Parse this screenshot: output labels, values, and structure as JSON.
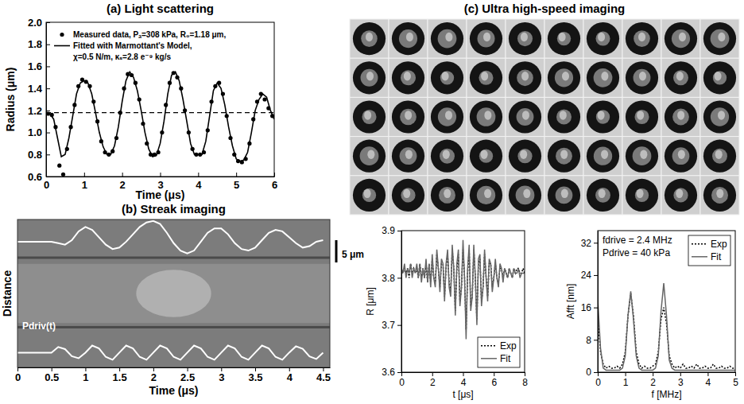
{
  "chart_data": [
    {
      "type": "line",
      "title": "(a) Light scattering",
      "x_label": "Time (μs)",
      "y_label": "Radius (μm)",
      "xlim": [
        0,
        6
      ],
      "xticks": [
        0,
        1,
        2,
        3,
        4,
        5,
        6
      ],
      "ylim": [
        0.6,
        2.0
      ],
      "yticks": [
        0.6,
        0.8,
        {
          "value": 1.0,
          "label": "1.0"
        },
        1.2,
        1.4,
        1.6,
        1.8,
        {
          "value": 2.0,
          "label": "2.0"
        }
      ],
      "legend": "upper left",
      "hlines": [
        {
          "value": 1.18,
          "line_style": "dashed",
          "color": "#000000"
        }
      ],
      "annotations": [
        {
          "text": "χ=0.5 N/m, κₛ=2.8 e⁻⁹ kg/s"
        }
      ],
      "series": [
        {
          "name": "Measured data, Pₐ=308 kPa, R₀=1.18 μm,",
          "type": "scatter",
          "marker": "circle",
          "color": "#000000",
          "x": [
            0.05,
            0.15,
            0.25,
            0.35,
            0.45,
            0.55,
            0.65,
            0.75,
            0.85,
            0.95,
            1.05,
            1.15,
            1.25,
            1.35,
            1.45,
            1.55,
            1.65,
            1.75,
            1.85,
            1.95,
            2.05,
            2.15,
            2.25,
            2.35,
            2.45,
            2.55,
            2.65,
            2.75,
            2.85,
            2.95,
            3.05,
            3.15,
            3.25,
            3.35,
            3.45,
            3.55,
            3.65,
            3.75,
            3.85,
            3.95,
            4.05,
            4.15,
            4.25,
            4.35,
            4.45,
            4.55,
            4.65,
            4.75,
            4.85,
            4.95,
            5.05,
            5.15,
            5.25,
            5.35,
            5.45,
            5.55,
            5.65,
            5.75,
            5.85,
            5.95
          ],
          "values": [
            1.17,
            1.16,
            1.05,
            0.7,
            0.62,
            0.85,
            1.05,
            1.25,
            1.42,
            1.48,
            1.46,
            1.42,
            1.28,
            1.1,
            0.92,
            0.82,
            0.8,
            0.83,
            0.95,
            1.18,
            1.4,
            1.53,
            1.52,
            1.45,
            1.3,
            1.08,
            0.9,
            0.8,
            0.8,
            0.82,
            1.0,
            1.25,
            1.45,
            1.54,
            1.5,
            1.4,
            1.2,
            1.0,
            0.85,
            0.8,
            0.8,
            0.82,
            1.02,
            1.28,
            1.42,
            1.45,
            1.35,
            1.15,
            0.95,
            0.8,
            0.74,
            0.73,
            0.76,
            0.9,
            1.12,
            1.28,
            1.35,
            1.3,
            1.22,
            1.15
          ]
        },
        {
          "name": "Fitted with Marmottant's Model,",
          "type": "line",
          "line_style": "solid",
          "color": "#000000",
          "x": [
            0,
            0.1,
            0.2,
            0.3,
            0.4,
            0.5,
            0.6,
            0.7,
            0.8,
            0.9,
            1,
            1.1,
            1.2,
            1.3,
            1.4,
            1.5,
            1.6,
            1.7,
            1.8,
            1.9,
            2,
            2.1,
            2.2,
            2.3,
            2.4,
            2.5,
            2.6,
            2.7,
            2.8,
            2.9,
            3,
            3.1,
            3.2,
            3.3,
            3.4,
            3.5,
            3.6,
            3.7,
            3.8,
            3.9,
            4,
            4.1,
            4.2,
            4.3,
            4.4,
            4.5,
            4.6,
            4.7,
            4.8,
            4.9,
            5,
            5.1,
            5.2,
            5.3,
            5.4,
            5.5,
            5.6,
            5.7,
            5.8,
            5.9,
            6
          ],
          "values": [
            1.18,
            1.17,
            1.12,
            0.95,
            0.78,
            0.8,
            0.95,
            1.15,
            1.35,
            1.45,
            1.47,
            1.45,
            1.35,
            1.18,
            1.0,
            0.87,
            0.8,
            0.8,
            0.88,
            1.05,
            1.28,
            1.47,
            1.55,
            1.5,
            1.38,
            1.2,
            1.0,
            0.85,
            0.78,
            0.79,
            0.9,
            1.1,
            1.35,
            1.52,
            1.55,
            1.47,
            1.3,
            1.1,
            0.9,
            0.8,
            0.8,
            0.8,
            0.92,
            1.15,
            1.38,
            1.45,
            1.4,
            1.25,
            1.05,
            0.88,
            0.76,
            0.74,
            0.75,
            0.82,
            1.0,
            1.2,
            1.3,
            1.35,
            1.32,
            1.2,
            1.12
          ]
        }
      ]
    },
    {
      "type": "line",
      "title": "(b) Streak imaging",
      "x_label": "Time (μs)",
      "y_label": "Distance",
      "xlim": [
        0,
        4.6
      ],
      "xticks": [
        0,
        0.5,
        1,
        1.5,
        2,
        2.5,
        3,
        3.5,
        4,
        4.5
      ],
      "ylim": [
        0,
        10
      ],
      "tick_labels": "x",
      "annotations": [
        {
          "text": "5 μm"
        }
      ],
      "x": [
        0,
        0.1,
        0.2,
        0.3,
        0.4,
        0.5,
        0.6,
        0.7,
        0.8,
        0.9,
        1,
        1.1,
        1.2,
        1.3,
        1.4,
        1.5,
        1.6,
        1.7,
        1.8,
        1.9,
        2,
        2.1,
        2.2,
        2.3,
        2.4,
        2.5,
        2.6,
        2.7,
        2.8,
        2.9,
        3,
        3.1,
        3.2,
        3.3,
        3.4,
        3.5,
        3.6,
        3.7,
        3.8,
        3.9,
        4,
        4.1,
        4.2,
        4.3,
        4.4,
        4.5
      ],
      "series": [
        {
          "color": "#ffffff",
          "line_style": "solid",
          "values": [
            8.5,
            8.5,
            8.5,
            8.5,
            8.5,
            8.5,
            8.4,
            8.3,
            8.6,
            9.2,
            9.5,
            9.3,
            8.8,
            8.3,
            8.0,
            8.1,
            8.5,
            9.0,
            9.5,
            9.8,
            9.9,
            9.7,
            9.1,
            8.4,
            7.9,
            7.7,
            7.9,
            8.5,
            9.1,
            9.4,
            9.4,
            9.0,
            8.4,
            8.0,
            7.9,
            8.1,
            8.6,
            9.1,
            9.3,
            9.2,
            8.8,
            8.4,
            8.1,
            8.2,
            8.5,
            8.6
          ]
        },
        {
          "name": "Pdriv(t)",
          "color": "#ffffff",
          "line_style": "solid",
          "values": [
            1,
            1,
            1,
            1,
            1,
            1,
            1.38,
            1.24,
            0.76,
            0.62,
            1.0,
            1.48,
            1.29,
            0.71,
            0.52,
            1.0,
            1.48,
            1.29,
            0.71,
            0.52,
            1.0,
            1.48,
            1.29,
            0.71,
            0.52,
            1.0,
            1.48,
            1.29,
            0.71,
            0.52,
            1.0,
            1.48,
            1.29,
            0.71,
            0.52,
            1.0,
            1.48,
            1.29,
            0.71,
            0.52,
            1.0,
            1.43,
            1.26,
            0.74,
            0.57,
            1.0
          ]
        }
      ]
    },
    {
      "type": "image_grid",
      "title": "(c) Ultra high-speed imaging"
    },
    {
      "type": "line",
      "x_label": "t [μs]",
      "y_label": "R [μm]",
      "xlim": [
        0,
        8
      ],
      "xticks": [
        0,
        2,
        4,
        6,
        8
      ],
      "ylim": [
        3.6,
        3.9
      ],
      "yticks": [
        3.6,
        3.7,
        3.8,
        3.9
      ],
      "legend": "lower right",
      "x": [
        0,
        0.1,
        0.2,
        0.3,
        0.4,
        0.5,
        0.6,
        0.7,
        0.8,
        0.9,
        1,
        1.1,
        1.2,
        1.3,
        1.4,
        1.5,
        1.6,
        1.7,
        1.8,
        1.9,
        2,
        2.1,
        2.2,
        2.3,
        2.4,
        2.5,
        2.6,
        2.7,
        2.8,
        2.9,
        3,
        3.1,
        3.2,
        3.3,
        3.4,
        3.5,
        3.6,
        3.7,
        3.8,
        3.9,
        4,
        4.1,
        4.2,
        4.3,
        4.4,
        4.5,
        4.6,
        4.7,
        4.8,
        4.9,
        5,
        5.1,
        5.2,
        5.3,
        5.4,
        5.5,
        5.6,
        5.7,
        5.8,
        5.9,
        6,
        6.1,
        6.2,
        6.3,
        6.4,
        6.5,
        6.6,
        6.7,
        6.8,
        6.9,
        7,
        7.1,
        7.2,
        7.3,
        7.4,
        7.5,
        7.6,
        7.7,
        7.8,
        7.9,
        8
      ],
      "series": [
        {
          "name": "Exp",
          "color": "#000000",
          "line_style": "dotted",
          "values": [
            3.82,
            3.81,
            3.82,
            3.81,
            3.82,
            3.8,
            3.83,
            3.81,
            3.82,
            3.81,
            3.82,
            3.8,
            3.83,
            3.8,
            3.82,
            3.8,
            3.83,
            3.79,
            3.83,
            3.79,
            3.84,
            3.8,
            3.79,
            3.85,
            3.82,
            3.78,
            3.83,
            3.83,
            3.76,
            3.82,
            3.85,
            3.79,
            3.77,
            3.86,
            3.82,
            3.73,
            3.82,
            3.85,
            3.75,
            3.78,
            3.86,
            3.8,
            3.69,
            3.81,
            3.86,
            3.74,
            3.76,
            3.86,
            3.8,
            3.71,
            3.83,
            3.84,
            3.75,
            3.78,
            3.85,
            3.8,
            3.76,
            3.83,
            3.83,
            3.78,
            3.8,
            3.83,
            3.8,
            3.79,
            3.82,
            3.82,
            3.8,
            3.82,
            3.81,
            3.8,
            3.82,
            3.81,
            3.8,
            3.82,
            3.81,
            3.82,
            3.82,
            3.81,
            3.81,
            3.82,
            3.81
          ]
        },
        {
          "name": "Fit",
          "color": "#666666",
          "line_style": "solid",
          "values": [
            3.82,
            3.81,
            3.83,
            3.8,
            3.82,
            3.81,
            3.83,
            3.8,
            3.82,
            3.81,
            3.83,
            3.8,
            3.83,
            3.79,
            3.82,
            3.8,
            3.84,
            3.79,
            3.83,
            3.78,
            3.85,
            3.8,
            3.78,
            3.86,
            3.82,
            3.77,
            3.84,
            3.83,
            3.75,
            3.83,
            3.86,
            3.78,
            3.76,
            3.87,
            3.82,
            3.72,
            3.83,
            3.86,
            3.74,
            3.78,
            3.88,
            3.8,
            3.67,
            3.82,
            3.87,
            3.73,
            3.76,
            3.87,
            3.8,
            3.7,
            3.84,
            3.85,
            3.74,
            3.78,
            3.86,
            3.8,
            3.75,
            3.84,
            3.83,
            3.77,
            3.8,
            3.84,
            3.8,
            3.78,
            3.83,
            3.82,
            3.79,
            3.82,
            3.81,
            3.8,
            3.82,
            3.81,
            3.8,
            3.82,
            3.81,
            3.81,
            3.82,
            3.8,
            3.81,
            3.81,
            3.81
          ]
        }
      ]
    },
    {
      "type": "line",
      "x_label": "f [MHz]",
      "y_label": "Afft [nm]",
      "xlim": [
        0,
        5
      ],
      "xticks": [
        0,
        1,
        2,
        3,
        4,
        5
      ],
      "ylim": [
        0,
        35
      ],
      "yticks": [
        0,
        8,
        16,
        24,
        32
      ],
      "legend": "upper right",
      "annotations": [
        {
          "text": "fdrive = 2.4 MHz"
        },
        {
          "text": "Pdrive = 40 kPa"
        }
      ],
      "x": [
        0,
        0.1,
        0.2,
        0.3,
        0.4,
        0.5,
        0.6,
        0.7,
        0.8,
        0.9,
        1,
        1.1,
        1.2,
        1.3,
        1.4,
        1.5,
        1.6,
        1.7,
        1.8,
        1.9,
        2,
        2.1,
        2.2,
        2.3,
        2.4,
        2.5,
        2.6,
        2.7,
        2.8,
        2.9,
        3,
        3.1,
        3.2,
        3.3,
        3.4,
        3.5,
        3.6,
        3.7,
        3.8,
        3.9,
        4,
        4.1,
        4.2,
        4.3,
        4.4,
        4.5,
        4.6,
        4.7,
        4.8,
        4.9,
        5
      ],
      "series": [
        {
          "name": "Exp",
          "color": "#000000",
          "line_style": "dotted",
          "values": [
            14,
            5,
            2,
            1,
            1.5,
            1,
            1,
            1.5,
            1,
            2,
            5,
            14,
            19.5,
            14,
            5,
            2,
            1,
            1.5,
            1,
            1,
            1.5,
            2,
            5,
            13,
            16,
            12,
            4,
            2,
            1,
            1.5,
            1,
            2,
            1,
            1,
            1.5,
            1,
            2,
            1,
            1,
            1.5,
            1,
            1,
            2,
            1,
            1,
            1.5,
            1,
            1,
            1.5,
            1,
            1
          ]
        },
        {
          "name": "Fit",
          "color": "#666666",
          "line_style": "solid",
          "values": [
            18,
            6,
            1,
            0.5,
            0.5,
            0.5,
            0.5,
            0.5,
            0.5,
            1,
            4,
            14,
            20,
            13,
            4,
            1,
            0.5,
            0.5,
            0.5,
            0.5,
            0.5,
            1,
            4,
            15,
            22,
            14,
            3,
            1,
            0.5,
            0.5,
            0.5,
            0.5,
            0.5,
            0.5,
            0.5,
            0.5,
            0.5,
            0.5,
            0.5,
            0.5,
            0.5,
            0.5,
            0.5,
            0.5,
            0.5,
            0.5,
            0.5,
            0.5,
            0.5,
            0.5,
            0.5
          ]
        }
      ]
    }
  ]
}
